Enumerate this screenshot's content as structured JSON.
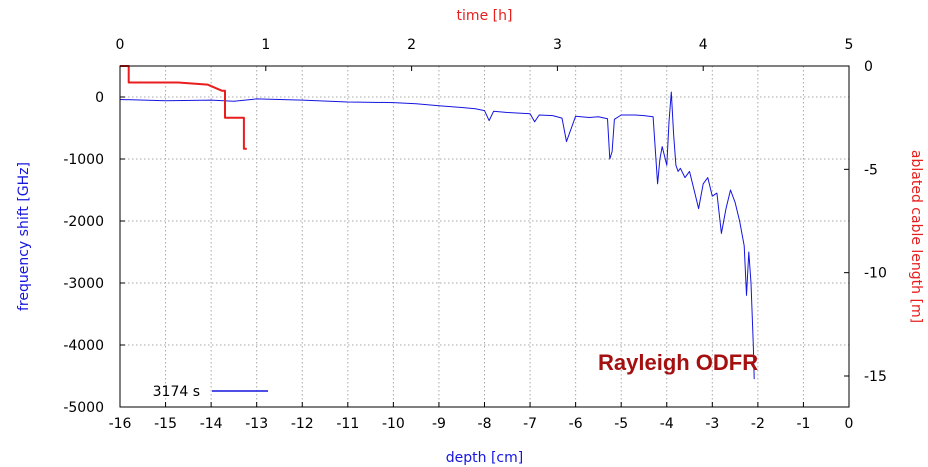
{
  "chart_data": {
    "type": "line",
    "title": "",
    "annotation": "Rayleigh ODFR",
    "xlabel": "depth [cm]",
    "ylabel": "frequency shift [GHz]",
    "x2label": "time [h]",
    "y2label": "ablated cable length [m]",
    "xlim": [
      -16,
      0
    ],
    "ylim": [
      -5000,
      500
    ],
    "x2lim": [
      0,
      5
    ],
    "y2lim": [
      -16.5,
      0.0
    ],
    "grid": true,
    "legend_position": "bottom-left",
    "xticks": [
      "-16",
      "-15",
      "-14",
      "-13",
      "-12",
      "-11",
      "-10",
      "-9",
      "-8",
      "-7",
      "-6",
      "-5",
      "-4",
      "-3",
      "-2",
      "-1",
      "0"
    ],
    "yticks": [
      "0",
      "-1000",
      "-2000",
      "-3000",
      "-4000",
      "-5000"
    ],
    "x2ticks": [
      "0",
      "1",
      "2",
      "3",
      "4",
      "5"
    ],
    "y2ticks": [
      "0",
      "-5",
      "-10",
      "-15"
    ],
    "colors": {
      "series1": "#1515e0",
      "series2": "#e81e1e"
    },
    "series": [
      {
        "name": "3174 s",
        "axis": "primary",
        "x": [
          -16.0,
          -15.0,
          -14.0,
          -13.5,
          -13.0,
          -12.5,
          -12.0,
          -11.0,
          -10.0,
          -9.5,
          -9.0,
          -8.5,
          -8.2,
          -8.0,
          -7.9,
          -7.8,
          -7.5,
          -7.0,
          -6.9,
          -6.8,
          -6.5,
          -6.3,
          -6.2,
          -6.0,
          -5.7,
          -5.5,
          -5.3,
          -5.25,
          -5.2,
          -5.15,
          -5.0,
          -4.7,
          -4.5,
          -4.3,
          -4.2,
          -4.15,
          -4.1,
          -4.0,
          -3.95,
          -3.9,
          -3.85,
          -3.8,
          -3.75,
          -3.7,
          -3.6,
          -3.5,
          -3.4,
          -3.3,
          -3.2,
          -3.1,
          -3.0,
          -2.9,
          -2.8,
          -2.7,
          -2.6,
          -2.5,
          -2.4,
          -2.3,
          -2.25,
          -2.2,
          -2.15,
          -2.1,
          -2.08
        ],
        "y": [
          -40,
          -60,
          -50,
          -70,
          -30,
          -40,
          -50,
          -80,
          -90,
          -110,
          -140,
          -170,
          -190,
          -220,
          -380,
          -230,
          -250,
          -270,
          -400,
          -290,
          -300,
          -340,
          -720,
          -310,
          -330,
          -320,
          -350,
          -1000,
          -880,
          -360,
          -290,
          -290,
          -300,
          -320,
          -1400,
          -1000,
          -800,
          -1100,
          -400,
          80,
          -600,
          -1100,
          -1200,
          -1150,
          -1300,
          -1200,
          -1500,
          -1800,
          -1400,
          -1300,
          -1600,
          -1550,
          -2200,
          -1800,
          -1500,
          -1700,
          -2000,
          -2400,
          -3200,
          -2500,
          -3000,
          -4000,
          -4550
        ]
      },
      {
        "name": "",
        "axis": "secondary",
        "x": [
          0.0,
          0.06,
          0.06,
          0.4,
          0.6,
          0.7,
          0.72,
          0.72,
          0.85,
          0.85,
          0.87
        ],
        "y": [
          0.0,
          0.0,
          -0.8,
          -0.8,
          -0.9,
          -1.2,
          -1.2,
          -2.5,
          -2.5,
          -4.0,
          -4.0
        ]
      }
    ]
  }
}
